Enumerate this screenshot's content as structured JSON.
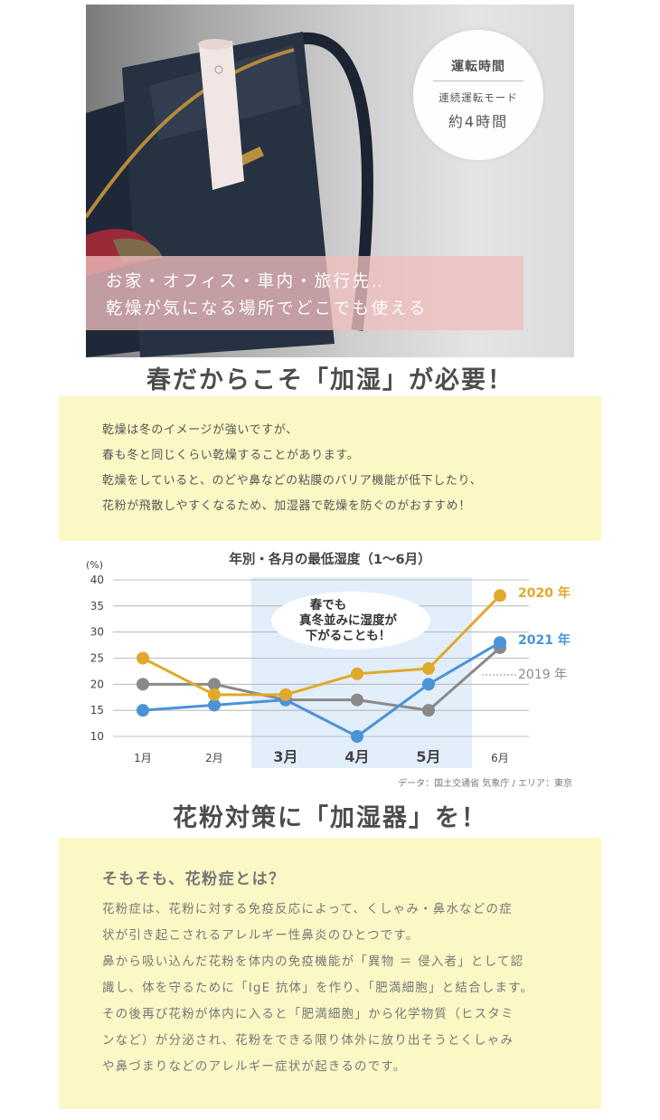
{
  "hero": {
    "badge": {
      "title": "運転時間",
      "mode": "連続運転モード",
      "value": "約4時間"
    },
    "overlay_line1": "お家・オフィス・車内・旅行先‥",
    "overlay_line2": "乾燥が気になる場所でどこでも使える"
  },
  "section1": {
    "heading": "春だからこそ「加湿」が必要！",
    "paragraphs": [
      "乾燥は冬のイメージが強いですが、",
      "春も冬と同じくらい乾燥することがあります。",
      "乾燥をしていると、のどや鼻などの粘膜のバリア機能が低下したり、",
      "花粉が飛散しやすくなるため、加湿器で乾燥を防ぐのがおすすめ！"
    ]
  },
  "chart_data": {
    "type": "line",
    "title": "年別・各月の最低湿度（1～6月）",
    "ylabel": "(%)",
    "xlabel": "",
    "categories": [
      "1月",
      "2月",
      "3月",
      "4月",
      "5月",
      "6月"
    ],
    "highlight_categories": [
      "3月",
      "4月",
      "5月"
    ],
    "ylim": [
      10,
      40
    ],
    "yticks": [
      10,
      15,
      20,
      25,
      30,
      35,
      40
    ],
    "grid": true,
    "legend": "labels at right end of lines",
    "series": [
      {
        "name": "2020 年",
        "values": [
          25,
          18,
          18,
          22,
          23,
          37
        ],
        "color": "#e0a92b"
      },
      {
        "name": "2021 年",
        "values": [
          15,
          16,
          17,
          10,
          20,
          28
        ],
        "color": "#4a93d8"
      },
      {
        "name": "2019 年",
        "values": [
          20,
          20,
          17,
          17,
          15,
          27
        ],
        "color": "#8a8a8a"
      }
    ],
    "annotation": [
      "春でも",
      "真冬並みに湿度が",
      "下がることも！"
    ],
    "source": "データ：国土交通省 気象庁 / エリア：東京",
    "colors": {
      "highlight": "#e3eefb",
      "grid": "#aaaaaa"
    }
  },
  "section2": {
    "heading": "花粉対策に「加湿器」を！",
    "subheading": "そもそも、花粉症とは？",
    "paragraphs": [
      "花粉症は、花粉に対する免疫反応によって、くしゃみ・鼻水などの症",
      "状が引き起こされるアレルギー性鼻炎のひとつです。",
      "鼻から吸い込んだ花粉を体内の免疫機能が「異物 ＝ 侵入者」として認",
      "識し、体を守るために「IgE 抗体」を作り、「肥満細胞」と結合します。",
      "その後再び花粉が体内に入ると「肥満細胞」から化学物質（ヒスタミ",
      "ンなど）が分泌され、花粉をできる限り体外に放り出そうとくしゃみ",
      "や鼻づまりなどのアレルギー症状が起きるのです。"
    ]
  }
}
